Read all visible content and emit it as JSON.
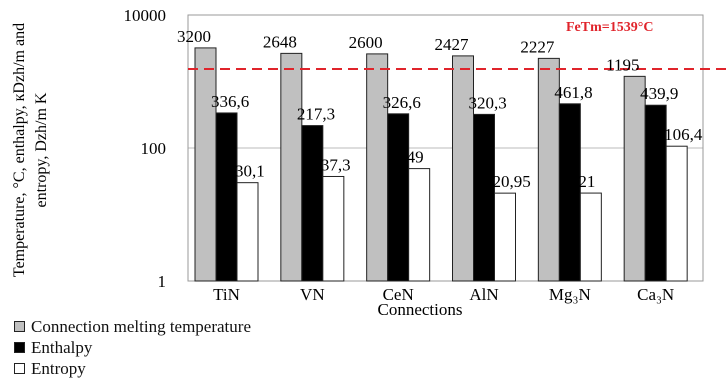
{
  "chart_data": {
    "type": "bar",
    "ylabel": "Temperature, °C, enthalpy, кDzh/m and entropy,  Dzh/m K",
    "xlabel": "Connections",
    "yscale": "log",
    "ylim": [
      1,
      10000
    ],
    "yticks": [
      "10000",
      "100",
      "1"
    ],
    "grid": "horizontal",
    "legend_position": "bottom-left",
    "categories": [
      "TiN",
      "VN",
      "CeN",
      "AlN",
      "Mg₃N",
      "Ca₃N"
    ],
    "series": [
      {
        "name": "Connection melting temperature",
        "color": "#c0c0c0",
        "values": [
          3200,
          2648,
          2600,
          2427,
          2227,
          1195
        ],
        "labels": [
          "3200",
          "2648",
          "2600",
          "2427",
          "2227",
          "1195"
        ]
      },
      {
        "name": "Enthalpy",
        "color": "#000000",
        "values": [
          336.6,
          217.3,
          326.6,
          320.3,
          461.8,
          439.9
        ],
        "labels": [
          "336,6",
          "217,3",
          "326,6",
          "320,3",
          "461,8",
          "439,9"
        ]
      },
      {
        "name": "Entropy",
        "color": "#ffffff",
        "values": [
          30.1,
          37.3,
          49,
          20.95,
          21,
          106.4
        ],
        "labels": [
          "30,1",
          "37,3",
          "49",
          "20,95",
          "21",
          "106,4"
        ]
      }
    ],
    "reference_line": {
      "label": "FeTm=1539°C",
      "value": 1539,
      "color": "#e0242b"
    }
  }
}
